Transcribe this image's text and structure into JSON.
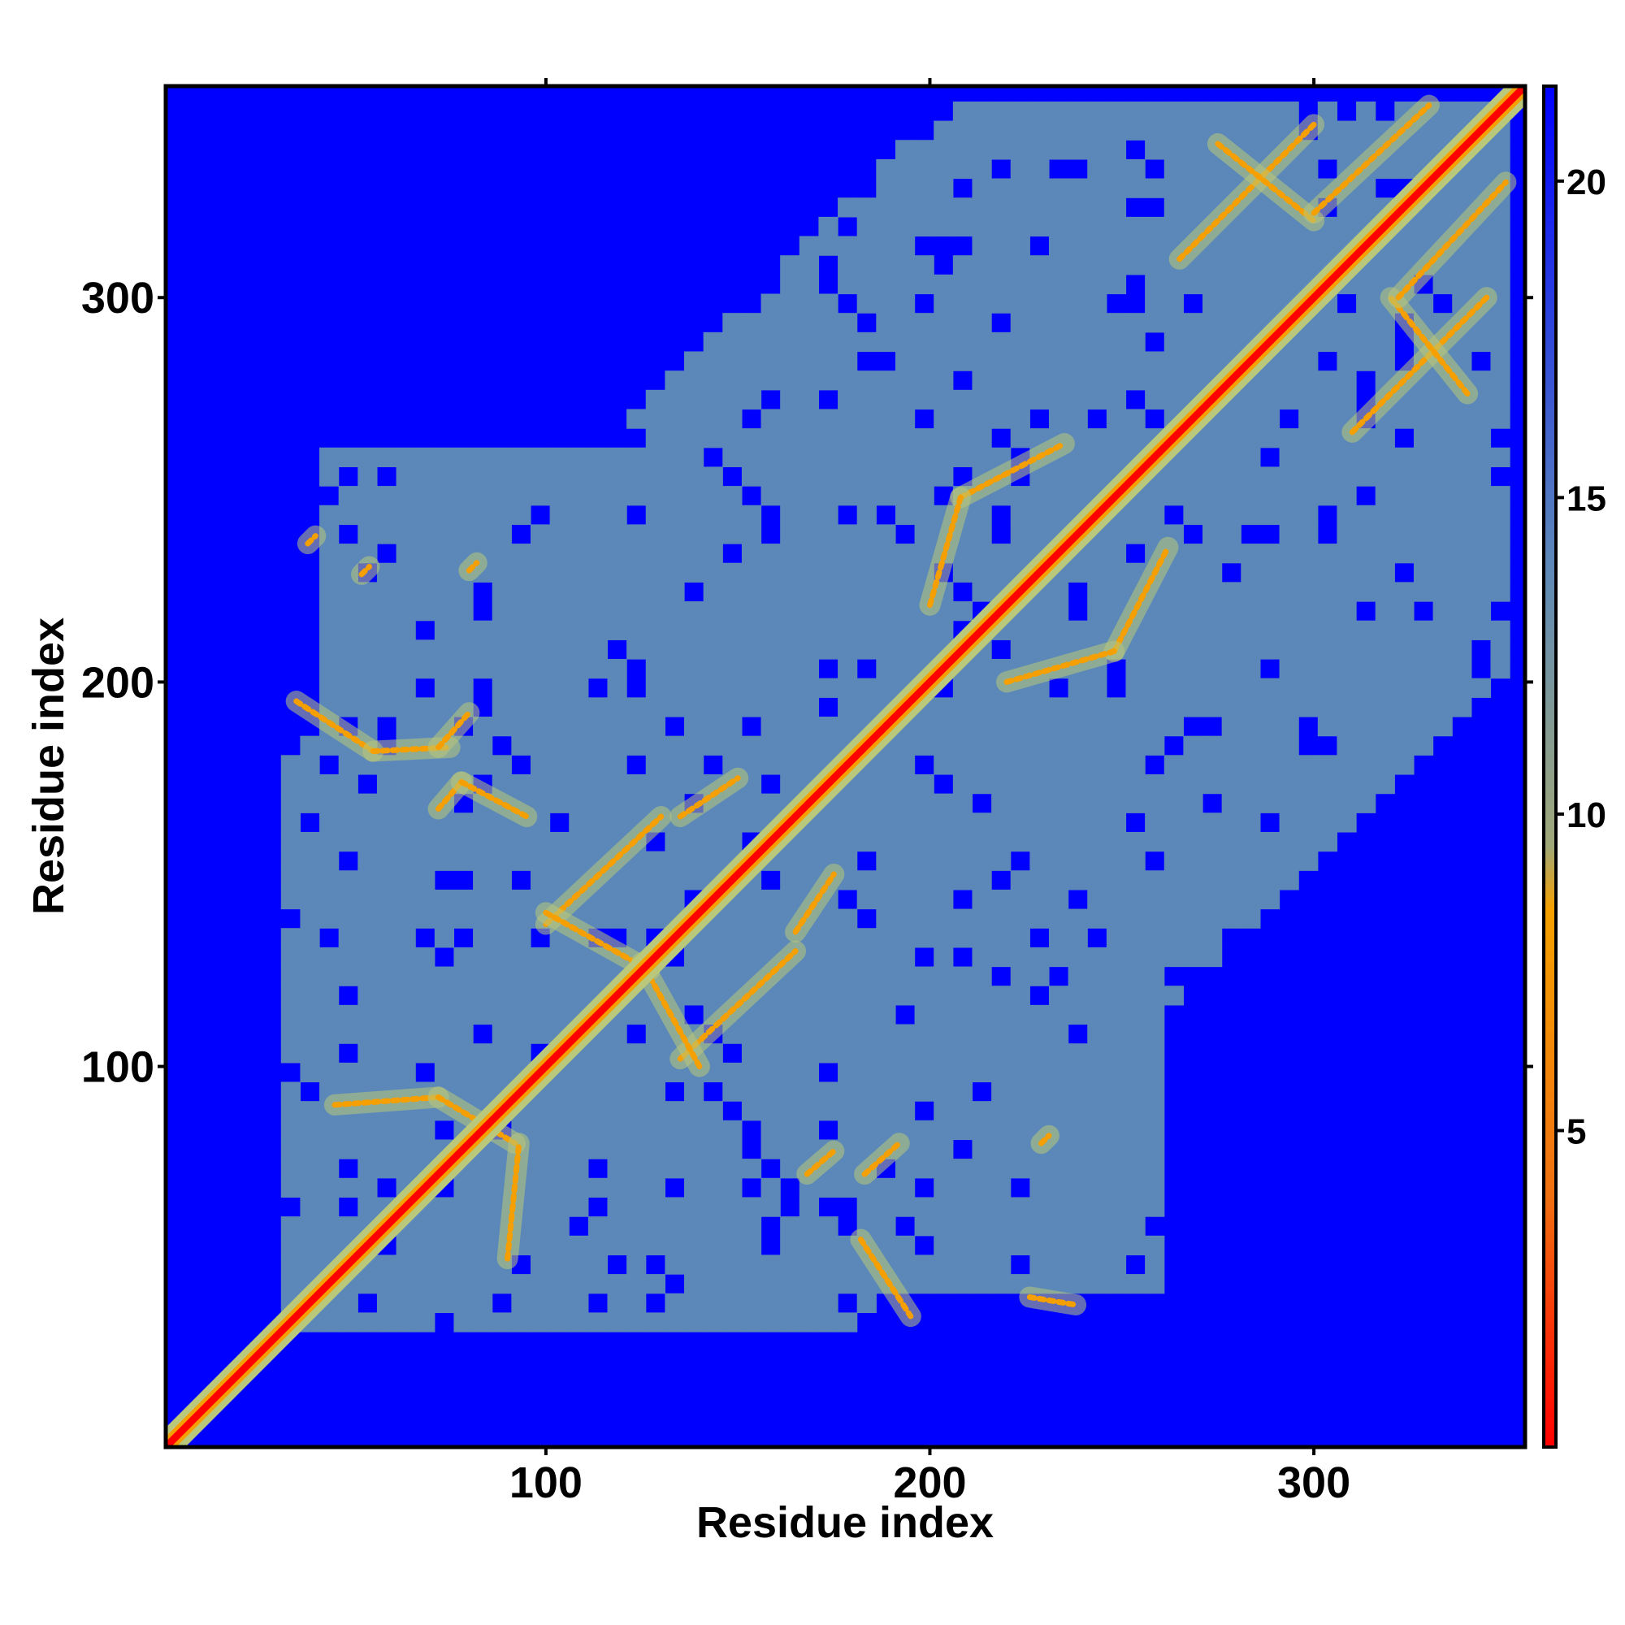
{
  "chart_data": {
    "type": "heatmap",
    "title": "",
    "xlabel": "Residue index",
    "ylabel": "Residue index",
    "xlim": [
      1,
      355
    ],
    "ylim": [
      1,
      355
    ],
    "x_ticks": [
      100,
      200,
      300
    ],
    "y_ticks": [
      100,
      200,
      300
    ],
    "x_tick_labels": [
      "100",
      "200",
      "300"
    ],
    "y_tick_labels": [
      "100",
      "200",
      "300"
    ],
    "grid": false,
    "legend": "colorbar-right",
    "colorbar": {
      "range": [
        0,
        21.5
      ],
      "ticks": [
        5,
        10,
        15,
        20
      ],
      "tick_labels": [
        "5",
        "10",
        "15",
        "20"
      ],
      "stops": [
        {
          "value": 0,
          "color": "#ff0000"
        },
        {
          "value": 4,
          "color": "#f07010"
        },
        {
          "value": 8.5,
          "color": "#f5a000"
        },
        {
          "value": 9.5,
          "color": "#a0a878"
        },
        {
          "value": 14,
          "color": "#5b88b8"
        },
        {
          "value": 21.5,
          "color": "#0000ff"
        }
      ]
    },
    "colors": {
      "far": "#0000ff",
      "mid": "#5b88b8",
      "contact": "#f5a000",
      "diagonal": "#ff0000",
      "band": "#b9c87a"
    },
    "diagonal": {
      "from": 1,
      "to": 355
    },
    "off_diagonal_contacts": [
      {
        "x1": 45,
        "y1": 90,
        "x2": 72,
        "y2": 92
      },
      {
        "x1": 72,
        "y1": 92,
        "x2": 92,
        "y2": 80
      },
      {
        "x1": 90,
        "y1": 50,
        "x2": 93,
        "y2": 80
      },
      {
        "x1": 35,
        "y1": 195,
        "x2": 55,
        "y2": 182
      },
      {
        "x1": 55,
        "y1": 182,
        "x2": 75,
        "y2": 183
      },
      {
        "x1": 72,
        "y1": 183,
        "x2": 80,
        "y2": 192
      },
      {
        "x1": 72,
        "y1": 167,
        "x2": 78,
        "y2": 174
      },
      {
        "x1": 78,
        "y1": 174,
        "x2": 95,
        "y2": 165
      },
      {
        "x1": 80,
        "y1": 229,
        "x2": 82,
        "y2": 231
      },
      {
        "x1": 38,
        "y1": 236,
        "x2": 40,
        "y2": 238
      },
      {
        "x1": 52,
        "y1": 228,
        "x2": 54,
        "y2": 230
      },
      {
        "x1": 100,
        "y1": 137,
        "x2": 130,
        "y2": 165
      },
      {
        "x1": 135,
        "y1": 102,
        "x2": 165,
        "y2": 130
      },
      {
        "x1": 135,
        "y1": 165,
        "x2": 150,
        "y2": 175
      },
      {
        "x1": 165,
        "y1": 135,
        "x2": 175,
        "y2": 150
      },
      {
        "x1": 100,
        "y1": 140,
        "x2": 127,
        "y2": 125
      },
      {
        "x1": 140,
        "y1": 100,
        "x2": 125,
        "y2": 127
      },
      {
        "x1": 168,
        "y1": 72,
        "x2": 175,
        "y2": 78
      },
      {
        "x1": 183,
        "y1": 72,
        "x2": 192,
        "y2": 80
      },
      {
        "x1": 182,
        "y1": 55,
        "x2": 195,
        "y2": 35
      },
      {
        "x1": 229,
        "y1": 80,
        "x2": 231,
        "y2": 82
      },
      {
        "x1": 226,
        "y1": 40,
        "x2": 238,
        "y2": 38
      },
      {
        "x1": 208,
        "y1": 248,
        "x2": 235,
        "y2": 262
      },
      {
        "x1": 200,
        "y1": 220,
        "x2": 208,
        "y2": 248
      },
      {
        "x1": 248,
        "y1": 208,
        "x2": 262,
        "y2": 235
      },
      {
        "x1": 220,
        "y1": 200,
        "x2": 248,
        "y2": 208
      },
      {
        "x1": 265,
        "y1": 310,
        "x2": 300,
        "y2": 345
      },
      {
        "x1": 275,
        "y1": 340,
        "x2": 300,
        "y2": 320
      },
      {
        "x1": 310,
        "y1": 265,
        "x2": 345,
        "y2": 300
      },
      {
        "x1": 340,
        "y1": 275,
        "x2": 320,
        "y2": 300
      },
      {
        "x1": 322,
        "y1": 300,
        "x2": 350,
        "y2": 330
      },
      {
        "x1": 300,
        "y1": 322,
        "x2": 330,
        "y2": 350
      }
    ],
    "low_distance_regions": [
      {
        "x": [
          40,
          110
        ],
        "y": [
          30,
          260
        ]
      },
      {
        "x": [
          30,
          260
        ],
        "y": [
          40,
          110
        ]
      },
      {
        "x": [
          95,
          195
        ],
        "y": [
          95,
          195
        ]
      },
      {
        "x": [
          190,
          270
        ],
        "y": [
          190,
          270
        ]
      },
      {
        "x": [
          260,
          355
        ],
        "y": [
          260,
          355
        ]
      }
    ]
  }
}
